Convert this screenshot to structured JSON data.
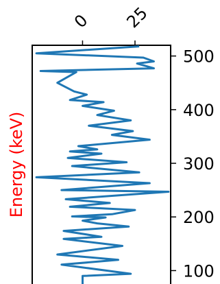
{
  "chart_data": {
    "type": "line",
    "title": "",
    "xlabel": "",
    "ylabel": "Energy (keV)",
    "ylabel_color": "#ff0000",
    "series_color": "#1f77b4",
    "x_ticks": [
      0,
      25
    ],
    "y_ticks": [
      100,
      200,
      300,
      400,
      500
    ],
    "xlim": [
      -24,
      42
    ],
    "ylim": [
      75,
      520
    ],
    "grid": false,
    "series": [
      {
        "points": [
          [
            0,
            75
          ],
          [
            0,
            90
          ],
          [
            23,
            94
          ],
          [
            -10,
            111
          ],
          [
            17,
            120
          ],
          [
            -12,
            130
          ],
          [
            19,
            146
          ],
          [
            -9,
            159
          ],
          [
            9,
            163
          ],
          [
            -9,
            174
          ],
          [
            22,
            182
          ],
          [
            7,
            188
          ],
          [
            0,
            193
          ],
          [
            11,
            199
          ],
          [
            -5,
            201
          ],
          [
            14,
            205
          ],
          [
            25,
            213
          ],
          [
            -6,
            219
          ],
          [
            13,
            226
          ],
          [
            -8,
            233
          ],
          [
            41,
            247
          ],
          [
            -10,
            250
          ],
          [
            32,
            263
          ],
          [
            -22,
            274
          ],
          [
            27,
            283
          ],
          [
            -5,
            295
          ],
          [
            21,
            302
          ],
          [
            -7,
            310
          ],
          [
            9,
            318
          ],
          [
            -6,
            322
          ],
          [
            7,
            326
          ],
          [
            -2,
            332
          ],
          [
            32,
            344
          ],
          [
            14,
            353
          ],
          [
            24,
            360
          ],
          [
            3,
            370
          ],
          [
            23,
            380
          ],
          [
            7,
            390
          ],
          [
            15,
            398
          ],
          [
            0,
            407
          ],
          [
            10,
            414
          ],
          [
            -6,
            418
          ],
          [
            2,
            428
          ],
          [
            -4,
            434
          ],
          [
            -12,
            450
          ],
          [
            -3,
            470
          ],
          [
            -20,
            472
          ],
          [
            34,
            477
          ],
          [
            26,
            486
          ],
          [
            34,
            490
          ],
          [
            29,
            497
          ],
          [
            -22,
            505
          ],
          [
            27,
            518
          ]
        ]
      }
    ]
  }
}
